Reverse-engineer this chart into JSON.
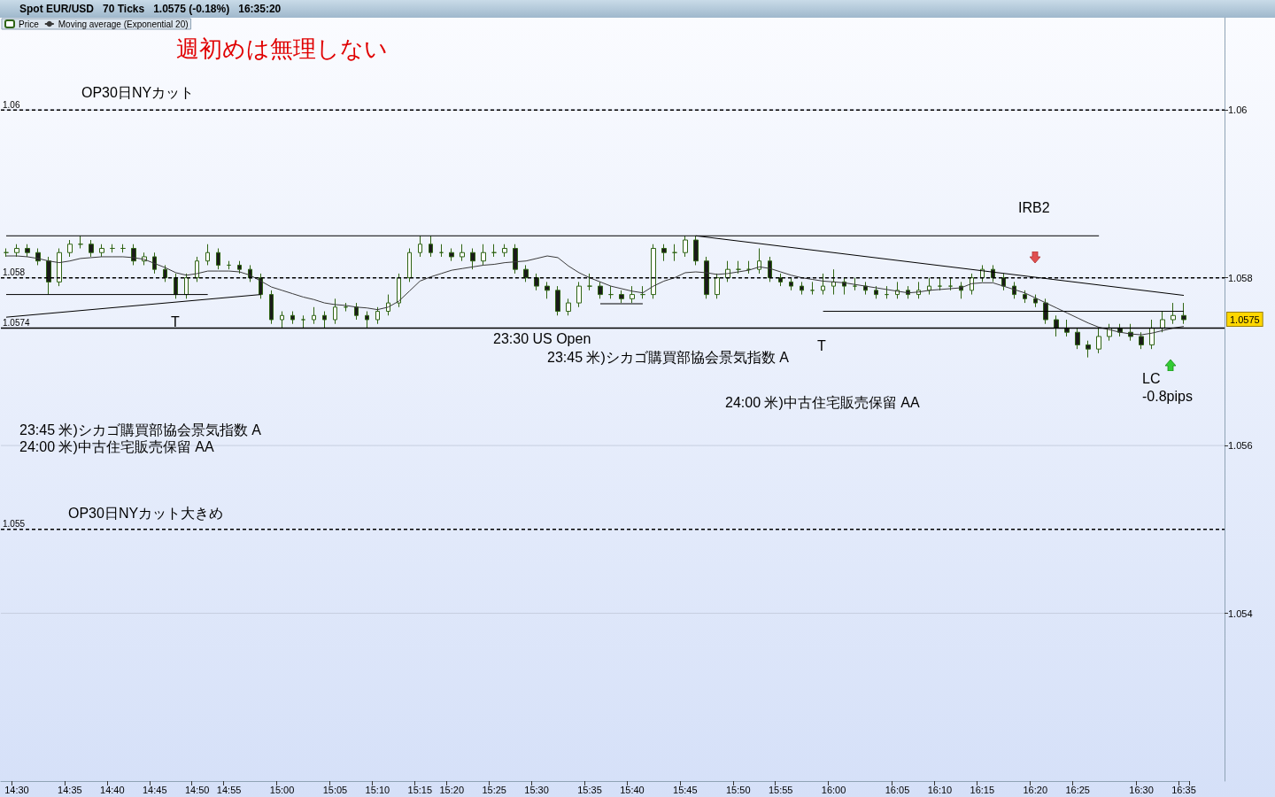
{
  "chart_data": {
    "type": "candlestick",
    "title": "Spot EUR/USD   70 Ticks   1.0575 (-0.18%)   16:35:20",
    "categories": [
      null,
      "14:30",
      null,
      null,
      null,
      null,
      "14:35",
      null,
      null,
      null,
      "14:40",
      null,
      null,
      null,
      "14:45",
      null,
      null,
      null,
      "14:50",
      null,
      null,
      "14:55",
      null,
      null,
      null,
      null,
      "15:00",
      null,
      null,
      null,
      null,
      "15:05",
      null,
      null,
      null,
      "15:10",
      null,
      null,
      null,
      "15:15",
      null,
      null,
      "15:20",
      null,
      null,
      null,
      "15:25",
      null,
      null,
      null,
      "15:30",
      null,
      null,
      null,
      null,
      "15:35",
      null,
      null,
      null,
      "15:40",
      null,
      null,
      null,
      null,
      "15:45",
      null,
      null,
      null,
      null,
      "15:50",
      null,
      null,
      null,
      "15:55",
      null,
      null,
      null,
      null,
      "16:00",
      null,
      null,
      null,
      null,
      null,
      "16:05",
      null,
      null,
      null,
      "16:10",
      null,
      null,
      null,
      "16:15",
      null,
      null,
      null,
      null,
      "16:20",
      null,
      null,
      null,
      "16:25",
      null,
      null,
      null,
      null,
      null,
      "16:30",
      null,
      null,
      null,
      "16:35"
    ],
    "series": [
      {
        "name": "Price",
        "color": "#2f6414",
        "ohlc": [
          [
            1.0583,
            1.05835,
            1.05825,
            1.0583
          ],
          [
            1.0583,
            1.0584,
            1.05825,
            1.05835
          ],
          [
            1.05835,
            1.0584,
            1.05825,
            1.0583
          ],
          [
            1.0583,
            1.05835,
            1.05815,
            1.0582
          ],
          [
            1.0582,
            1.05825,
            1.0578,
            1.05795
          ],
          [
            1.05795,
            1.05835,
            1.0579,
            1.0583
          ],
          [
            1.0583,
            1.05845,
            1.05825,
            1.0584
          ],
          [
            1.0584,
            1.0585,
            1.05835,
            1.0584
          ],
          [
            1.0584,
            1.05845,
            1.05825,
            1.0583
          ],
          [
            1.0583,
            1.0584,
            1.05825,
            1.05835
          ],
          [
            1.05835,
            1.0584,
            1.0583,
            1.05835
          ],
          [
            1.05835,
            1.0584,
            1.0583,
            1.05835
          ],
          [
            1.05835,
            1.0584,
            1.05815,
            1.0582
          ],
          [
            1.0582,
            1.0583,
            1.05815,
            1.05825
          ],
          [
            1.05825,
            1.0583,
            1.05805,
            1.0581
          ],
          [
            1.0581,
            1.05815,
            1.05795,
            1.058
          ],
          [
            1.058,
            1.05805,
            1.05775,
            1.0578
          ],
          [
            1.0578,
            1.05805,
            1.05775,
            1.058
          ],
          [
            1.058,
            1.05825,
            1.05795,
            1.0582
          ],
          [
            1.0582,
            1.0584,
            1.05815,
            1.0583
          ],
          [
            1.0583,
            1.05835,
            1.0581,
            1.05815
          ],
          [
            1.05815,
            1.0582,
            1.0581,
            1.05815
          ],
          [
            1.05815,
            1.0582,
            1.05805,
            1.0581
          ],
          [
            1.0581,
            1.05815,
            1.05795,
            1.058
          ],
          [
            1.058,
            1.05805,
            1.05775,
            1.0578
          ],
          [
            1.0578,
            1.05785,
            1.05745,
            1.0575
          ],
          [
            1.0575,
            1.0576,
            1.0574,
            1.05755
          ],
          [
            1.05755,
            1.0576,
            1.05745,
            1.0575
          ],
          [
            1.0575,
            1.05755,
            1.0574,
            1.0575
          ],
          [
            1.0575,
            1.05765,
            1.05745,
            1.05755
          ],
          [
            1.05755,
            1.0576,
            1.0574,
            1.0575
          ],
          [
            1.0575,
            1.05775,
            1.05745,
            1.05765
          ],
          [
            1.05765,
            1.0577,
            1.0576,
            1.05765
          ],
          [
            1.05765,
            1.0577,
            1.0575,
            1.05755
          ],
          [
            1.05755,
            1.0576,
            1.0574,
            1.0575
          ],
          [
            1.0575,
            1.05765,
            1.05745,
            1.0576
          ],
          [
            1.0576,
            1.0578,
            1.05755,
            1.0577
          ],
          [
            1.0577,
            1.05805,
            1.05765,
            1.058
          ],
          [
            1.058,
            1.05835,
            1.05795,
            1.0583
          ],
          [
            1.0583,
            1.0585,
            1.05825,
            1.0584
          ],
          [
            1.0584,
            1.0585,
            1.05825,
            1.0583
          ],
          [
            1.0583,
            1.0584,
            1.05825,
            1.0583
          ],
          [
            1.0583,
            1.05835,
            1.0582,
            1.05825
          ],
          [
            1.05825,
            1.0584,
            1.0582,
            1.0583
          ],
          [
            1.0583,
            1.05835,
            1.0581,
            1.0582
          ],
          [
            1.0582,
            1.0584,
            1.05815,
            1.0583
          ],
          [
            1.0583,
            1.0584,
            1.05825,
            1.0583
          ],
          [
            1.0583,
            1.0584,
            1.05825,
            1.05835
          ],
          [
            1.05835,
            1.0584,
            1.05805,
            1.0581
          ],
          [
            1.0581,
            1.05815,
            1.05795,
            1.058
          ],
          [
            1.058,
            1.05805,
            1.05785,
            1.0579
          ],
          [
            1.0579,
            1.05795,
            1.05775,
            1.05785
          ],
          [
            1.05785,
            1.0579,
            1.05755,
            1.0576
          ],
          [
            1.0576,
            1.05775,
            1.05755,
            1.0577
          ],
          [
            1.0577,
            1.05795,
            1.05765,
            1.0579
          ],
          [
            1.0579,
            1.05805,
            1.05785,
            1.0579
          ],
          [
            1.0579,
            1.05795,
            1.05775,
            1.0578
          ],
          [
            1.0578,
            1.0579,
            1.05775,
            1.0578
          ],
          [
            1.0578,
            1.05785,
            1.0577,
            1.05775
          ],
          [
            1.05775,
            1.0579,
            1.0577,
            1.0578
          ],
          [
            1.0578,
            1.0579,
            1.05775,
            1.0578
          ],
          [
            1.0578,
            1.0584,
            1.05775,
            1.05835
          ],
          [
            1.05835,
            1.0584,
            1.0582,
            1.0583
          ],
          [
            1.0583,
            1.0584,
            1.0582,
            1.0583
          ],
          [
            1.0583,
            1.0585,
            1.05825,
            1.05845
          ],
          [
            1.05845,
            1.0585,
            1.05815,
            1.0582
          ],
          [
            1.0582,
            1.05825,
            1.05775,
            1.0578
          ],
          [
            1.0578,
            1.05805,
            1.05775,
            1.058
          ],
          [
            1.058,
            1.0582,
            1.05795,
            1.0581
          ],
          [
            1.0581,
            1.0582,
            1.05805,
            1.0581
          ],
          [
            1.0581,
            1.0582,
            1.05805,
            1.0581
          ],
          [
            1.0581,
            1.05835,
            1.05805,
            1.0582
          ],
          [
            1.0582,
            1.05825,
            1.05795,
            1.058
          ],
          [
            1.058,
            1.05805,
            1.0579,
            1.05795
          ],
          [
            1.05795,
            1.058,
            1.05785,
            1.0579
          ],
          [
            1.0579,
            1.05795,
            1.0578,
            1.05785
          ],
          [
            1.05785,
            1.05795,
            1.0578,
            1.05785
          ],
          [
            1.05785,
            1.05805,
            1.0578,
            1.0579
          ],
          [
            1.0579,
            1.0581,
            1.0578,
            1.05795
          ],
          [
            1.05795,
            1.058,
            1.0578,
            1.0579
          ],
          [
            1.0579,
            1.058,
            1.05785,
            1.0579
          ],
          [
            1.0579,
            1.05795,
            1.0578,
            1.05785
          ],
          [
            1.05785,
            1.0579,
            1.05775,
            1.0578
          ],
          [
            1.0578,
            1.0579,
            1.05775,
            1.0578
          ],
          [
            1.0578,
            1.05795,
            1.05775,
            1.05785
          ],
          [
            1.05785,
            1.0579,
            1.05775,
            1.0578
          ],
          [
            1.0578,
            1.05795,
            1.05775,
            1.05785
          ],
          [
            1.05785,
            1.058,
            1.0578,
            1.0579
          ],
          [
            1.0579,
            1.058,
            1.05785,
            1.0579
          ],
          [
            1.0579,
            1.058,
            1.05785,
            1.0579
          ],
          [
            1.0579,
            1.05795,
            1.05775,
            1.05785
          ],
          [
            1.05785,
            1.05805,
            1.0578,
            1.058
          ],
          [
            1.058,
            1.05815,
            1.05795,
            1.0581
          ],
          [
            1.0581,
            1.05815,
            1.05795,
            1.058
          ],
          [
            1.058,
            1.05805,
            1.05785,
            1.0579
          ],
          [
            1.0579,
            1.05795,
            1.05775,
            1.0578
          ],
          [
            1.0578,
            1.05785,
            1.0577,
            1.05775
          ],
          [
            1.05775,
            1.0578,
            1.05765,
            1.0577
          ],
          [
            1.0577,
            1.05775,
            1.05745,
            1.0575
          ],
          [
            1.0575,
            1.05755,
            1.0573,
            1.0574
          ],
          [
            1.0574,
            1.0575,
            1.0573,
            1.05735
          ],
          [
            1.05735,
            1.0574,
            1.05715,
            1.0572
          ],
          [
            1.0572,
            1.05725,
            1.05705,
            1.05715
          ],
          [
            1.05715,
            1.0574,
            1.0571,
            1.0573
          ],
          [
            1.0573,
            1.05745,
            1.05725,
            1.0574
          ],
          [
            1.0574,
            1.05745,
            1.0573,
            1.05735
          ],
          [
            1.05735,
            1.05745,
            1.05725,
            1.0573
          ],
          [
            1.0573,
            1.05735,
            1.05715,
            1.0572
          ],
          [
            1.0572,
            1.0575,
            1.05715,
            1.0574
          ],
          [
            1.0574,
            1.0576,
            1.05735,
            1.0575
          ],
          [
            1.0575,
            1.0577,
            1.05745,
            1.05755
          ],
          [
            1.05755,
            1.0577,
            1.05745,
            1.0575
          ]
        ]
      },
      {
        "type": "line",
        "name": "Moving average (Exponential 20)",
        "color": "#3a3a3a",
        "values": [
          1.05826,
          1.05826,
          1.05825,
          1.05823,
          1.0582,
          1.05818,
          1.0582,
          1.05823,
          1.05824,
          1.05825,
          1.05825,
          1.05825,
          1.05824,
          1.05822,
          1.05817,
          1.05812,
          1.05806,
          1.05803,
          1.05805,
          1.05808,
          1.05808,
          1.05808,
          1.05807,
          1.05803,
          1.05796,
          1.05789,
          1.05785,
          1.05781,
          1.05777,
          1.05774,
          1.0577,
          1.05768,
          1.05767,
          1.05765,
          1.05764,
          1.05762,
          1.05765,
          1.05772,
          1.05784,
          1.05796,
          1.05801,
          1.05805,
          1.05809,
          1.05811,
          1.05813,
          1.05815,
          1.05816,
          1.05818,
          1.05819,
          1.0582,
          1.05823,
          1.05826,
          1.05824,
          1.05814,
          1.05806,
          1.058,
          1.05795,
          1.0579,
          1.05787,
          1.05784,
          1.05782,
          1.0579,
          1.05796,
          1.058,
          1.05806,
          1.05807,
          1.05806,
          1.05804,
          1.05805,
          1.05807,
          1.05809,
          1.05813,
          1.05811,
          1.05807,
          1.05803,
          1.058,
          1.05798,
          1.05796,
          1.05795,
          1.05794,
          1.05792,
          1.0579,
          1.05788,
          1.05786,
          1.05784,
          1.05782,
          1.05783,
          1.05785,
          1.05786,
          1.05787,
          1.05788,
          1.05793,
          1.05794,
          1.05794,
          1.0579,
          1.05786,
          1.05782,
          1.05776,
          1.0577,
          1.05764,
          1.05758,
          1.05752,
          1.05746,
          1.05741,
          1.05738,
          1.05735,
          1.05733,
          1.05732,
          1.05734,
          1.05737,
          1.0574,
          1.05742
        ]
      },
      {
        "type": "line",
        "color": "#000000",
        "values": [
          1.05753,
          null,
          null,
          null,
          null,
          null,
          null,
          null,
          null,
          null,
          null,
          null,
          null,
          null,
          null,
          null,
          null,
          null,
          null,
          null,
          null,
          null,
          null,
          null,
          1.0578,
          null,
          null,
          null,
          null,
          null,
          null,
          null,
          null,
          null,
          null,
          null,
          null,
          null,
          null,
          null,
          null,
          null,
          null,
          null,
          null,
          null,
          null,
          null,
          null,
          null,
          null,
          null,
          null,
          null,
          null,
          null,
          null,
          null,
          null,
          null,
          null,
          null,
          null,
          null,
          null,
          null,
          null,
          null,
          null,
          null,
          null,
          null,
          null,
          null,
          null,
          null,
          null,
          null,
          null,
          null,
          null,
          null,
          null,
          null,
          null,
          null,
          null,
          null,
          null,
          null,
          null,
          null,
          null,
          null,
          null,
          null,
          null,
          null,
          null,
          null,
          null,
          null,
          null,
          null,
          null,
          null,
          null,
          null,
          null,
          null,
          null,
          null
        ]
      },
      {
        "type": "line",
        "color": "#000000",
        "values": [
          null,
          null,
          null,
          null,
          null,
          null,
          null,
          null,
          null,
          null,
          null,
          null,
          null,
          null,
          null,
          null,
          null,
          null,
          null,
          null,
          null,
          null,
          null,
          null,
          null,
          null,
          null,
          null,
          null,
          null,
          null,
          null,
          null,
          null,
          null,
          null,
          null,
          null,
          null,
          null,
          null,
          null,
          null,
          null,
          null,
          null,
          null,
          null,
          null,
          null,
          null,
          null,
          null,
          null,
          null,
          null,
          null,
          null,
          null,
          null,
          null,
          null,
          null,
          null,
          null,
          1.0585,
          null,
          null,
          null,
          null,
          null,
          null,
          null,
          null,
          null,
          null,
          null,
          null,
          null,
          null,
          null,
          null,
          null,
          null,
          null,
          null,
          null,
          null,
          null,
          null,
          null,
          null,
          null,
          null,
          null,
          null,
          null,
          null,
          null,
          null,
          null,
          null,
          null,
          null,
          null,
          null,
          null,
          null,
          null,
          null,
          null,
          1.05779
        ]
      },
      {
        "type": "line",
        "color": "#000000",
        "values": [
          1.0585,
          null,
          null,
          null,
          null,
          null,
          null,
          null,
          null,
          null,
          null,
          null,
          null,
          null,
          null,
          null,
          null,
          null,
          null,
          null,
          null,
          null,
          null,
          null,
          null,
          null,
          null,
          null,
          null,
          null,
          null,
          null,
          null,
          null,
          null,
          null,
          null,
          null,
          null,
          null,
          null,
          null,
          null,
          null,
          null,
          null,
          null,
          null,
          null,
          null,
          null,
          null,
          null,
          null,
          null,
          null,
          null,
          null,
          null,
          null,
          null,
          null,
          null,
          null,
          null,
          null,
          null,
          null,
          null,
          null,
          null,
          null,
          null,
          null,
          null,
          null,
          null,
          null,
          null,
          null,
          null,
          null,
          null,
          null,
          null,
          null,
          null,
          null,
          null,
          null,
          null,
          null,
          null,
          null,
          null,
          null,
          null,
          null,
          null,
          null,
          null,
          null,
          null,
          1.0585,
          null,
          null,
          null,
          null,
          null,
          null,
          null,
          null
        ]
      },
      {
        "type": "line",
        "color": "#000000",
        "values": [
          1.0578,
          null,
          null,
          null,
          null,
          null,
          null,
          null,
          null,
          null,
          null,
          null,
          null,
          null,
          null,
          null,
          null,
          null,
          null,
          1.0578,
          null,
          null,
          null,
          null,
          null,
          null,
          null,
          null,
          null,
          null,
          null,
          null,
          null,
          null,
          null,
          null,
          null,
          null,
          null,
          null,
          null,
          null,
          null,
          null,
          null,
          null,
          null,
          null,
          null,
          null,
          null,
          null,
          null,
          null,
          null,
          null,
          null,
          null,
          null,
          null,
          null,
          null,
          null,
          null,
          null,
          null,
          null,
          null,
          null,
          null,
          null,
          null,
          null,
          null,
          null,
          null,
          null,
          null,
          null,
          null,
          null,
          null,
          null,
          null,
          null,
          null,
          null,
          null,
          null,
          null,
          null,
          null,
          null,
          null,
          null,
          null,
          null,
          null,
          null,
          null,
          null,
          null,
          null,
          null,
          null,
          null,
          null,
          null,
          null,
          null,
          null,
          null
        ]
      },
      {
        "type": "line",
        "color": "#000000",
        "values": [
          null,
          null,
          null,
          null,
          null,
          null,
          null,
          null,
          null,
          null,
          null,
          null,
          null,
          null,
          null,
          null,
          null,
          null,
          null,
          null,
          null,
          null,
          null,
          null,
          null,
          null,
          null,
          null,
          null,
          null,
          null,
          null,
          null,
          null,
          null,
          null,
          null,
          null,
          null,
          null,
          null,
          null,
          null,
          null,
          null,
          null,
          null,
          null,
          null,
          null,
          null,
          null,
          null,
          null,
          null,
          null,
          1.05769,
          null,
          null,
          null,
          1.05769,
          null,
          null,
          null,
          null,
          null,
          null,
          null,
          null,
          null,
          null,
          null,
          null,
          null,
          null,
          null,
          null,
          null,
          null,
          null,
          null,
          null,
          null,
          null,
          null,
          null,
          null,
          null,
          null,
          null,
          null,
          null,
          null,
          null,
          null,
          null,
          null,
          null,
          null,
          null,
          null,
          null,
          null,
          null,
          null,
          null,
          null,
          null,
          null,
          null,
          null,
          null
        ]
      },
      {
        "type": "line",
        "color": "#000000",
        "values": [
          null,
          null,
          null,
          null,
          null,
          null,
          null,
          null,
          null,
          null,
          null,
          null,
          null,
          null,
          null,
          null,
          null,
          null,
          null,
          null,
          null,
          null,
          null,
          null,
          null,
          null,
          null,
          null,
          null,
          null,
          null,
          null,
          null,
          null,
          null,
          null,
          null,
          null,
          null,
          null,
          null,
          null,
          null,
          null,
          null,
          null,
          null,
          null,
          null,
          null,
          null,
          null,
          null,
          null,
          null,
          null,
          null,
          null,
          null,
          null,
          null,
          null,
          null,
          null,
          null,
          null,
          null,
          null,
          null,
          null,
          null,
          null,
          null,
          null,
          null,
          null,
          null,
          1.0576,
          null,
          null,
          null,
          null,
          null,
          null,
          null,
          null,
          null,
          null,
          null,
          null,
          null,
          null,
          null,
          null,
          null,
          null,
          null,
          null,
          null,
          null,
          null,
          null,
          null,
          null,
          null,
          null,
          null,
          null,
          null,
          null,
          null,
          1.0576
        ]
      }
    ],
    "ylim": [
      1.052,
      1.0611
    ],
    "yticks": [
      1.054,
      1.056,
      1.058,
      1.06
    ],
    "grid": "y",
    "legend": "top left",
    "marker": "none",
    "ref_lines": [
      {
        "axis": "y",
        "value": 1.06,
        "label": "1.06",
        "line_style": "dashed",
        "color": "#000000"
      },
      {
        "axis": "y",
        "value": 1.058,
        "label": "1.058",
        "line_style": "dashed",
        "color": "#000000"
      },
      {
        "axis": "y",
        "value": 1.0574,
        "label": "1.0574",
        "line_style": "solid",
        "color": "#000000"
      },
      {
        "axis": "y",
        "value": 1.055,
        "label": "1.055",
        "line_style": "dashed",
        "color": "#000000"
      }
    ],
    "annotations": [
      "週初めは無理しない",
      "OP30日NYカット",
      "IRB2",
      "T",
      "23:30 US Open",
      "23:45 米)シカゴ購買部協会景気指数 A",
      "T",
      "24:00 米)中古住宅販売保留 AA",
      "LC",
      "-0.8pips",
      "23:45 米)シカゴ購買部協会景気指数 A",
      "24:00 米)中古住宅販売保留 AA",
      "OP30日NYカット大きめ",
      "1.0575"
    ]
  }
}
